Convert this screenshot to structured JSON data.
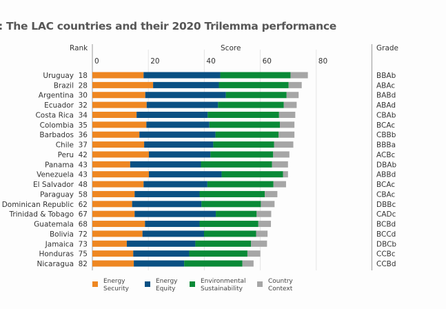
{
  "title": ":  The LAC countries and their 2020 Trilemma performance",
  "headers": {
    "rank": "Rank",
    "score": "Score",
    "grade": "Grade"
  },
  "chart_data": {
    "type": "bar",
    "orientation": "horizontal",
    "stacked": true,
    "title": "The LAC countries and their 2020 Trilemma performance",
    "xlabel": "Score",
    "xlim": [
      0,
      90
    ],
    "xticks": [
      0,
      20,
      40,
      60,
      80
    ],
    "grid": true,
    "legend_position": "bottom",
    "categories": [
      "Uruguay",
      "Brazil",
      "Argentina",
      "Ecuador",
      "Costa Rica",
      "Colombia",
      "Barbados",
      "Chile",
      "Peru",
      "Panama",
      "Venezuela",
      "El Salvador",
      "Paraguay",
      "Dominican Republic",
      "Trinidad & Tobago",
      "Guatemala",
      "Bolivia",
      "Jamaica",
      "Honduras",
      "Nicaragua"
    ],
    "ranks": [
      18,
      28,
      30,
      32,
      34,
      35,
      36,
      37,
      42,
      43,
      43,
      48,
      58,
      62,
      67,
      68,
      72,
      73,
      75,
      82
    ],
    "grades": [
      "BBAb",
      "ABAc",
      "BABd",
      "ABAd",
      "CBAb",
      "BCAc",
      "CBBb",
      "BBBa",
      "ACBc",
      "DBAb",
      "ABBd",
      "BCAc",
      "CBAc",
      "DBBc",
      "CADc",
      "BCBd",
      "BCCd",
      "DBCb",
      "CCBc",
      "CCBd"
    ],
    "series": [
      {
        "name": "Energy Security",
        "legend": [
          "Energy",
          "Security"
        ],
        "color": "#ee8722",
        "values": [
          18.3,
          21.7,
          18.9,
          19.4,
          15.8,
          19.3,
          16.8,
          18.5,
          20.2,
          13.5,
          20.2,
          18.3,
          15.1,
          14.2,
          15.1,
          18.8,
          17.9,
          12.3,
          14.6,
          14.8
        ]
      },
      {
        "name": "Energy Equity",
        "legend": [
          "Energy",
          "Equity"
        ],
        "color": "#0a5083",
        "values": [
          27.4,
          23.5,
          28.8,
          25.5,
          25.4,
          22.5,
          27.2,
          24.7,
          22.0,
          25.3,
          26.0,
          22.8,
          23.2,
          24.8,
          29.0,
          19.5,
          22.0,
          24.5,
          20.0,
          18.0
        ]
      },
      {
        "name": "Environmental Sustainability",
        "legend": [
          "Environmental",
          "Sustainability"
        ],
        "color": "#0a8a37",
        "values": [
          25.1,
          24.9,
          21.7,
          23.5,
          25.5,
          25.2,
          22.5,
          21.7,
          22.4,
          25.4,
          21.9,
          23.6,
          23.3,
          21.2,
          14.6,
          21.0,
          18.6,
          19.9,
          20.8,
          20.8
        ]
      },
      {
        "name": "Country Context",
        "legend": [
          "Country",
          "Context"
        ],
        "color": "#a6a6a6",
        "values": [
          6.2,
          4.7,
          4.3,
          4.6,
          5.8,
          5.2,
          5.7,
          6.9,
          5.8,
          5.7,
          1.8,
          4.5,
          4.5,
          4.9,
          5.2,
          4.5,
          4.1,
          5.7,
          4.6,
          4.0
        ]
      }
    ]
  }
}
